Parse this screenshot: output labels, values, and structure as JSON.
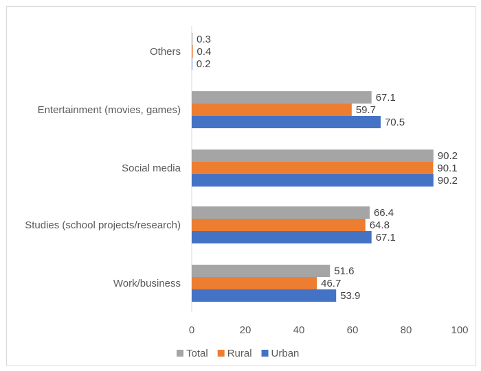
{
  "chart_data": {
    "type": "bar",
    "orientation": "horizontal",
    "categories": [
      "Work/business",
      "Studies (school projects/research)",
      "Social media",
      "Entertainment (movies, games)",
      "Others"
    ],
    "series": [
      {
        "name": "Total",
        "color": "#a5a5a5",
        "values": [
          51.6,
          66.4,
          90.2,
          67.1,
          0.3
        ]
      },
      {
        "name": "Rural",
        "color": "#ed7d31",
        "values": [
          46.7,
          64.8,
          90.1,
          59.7,
          0.4
        ]
      },
      {
        "name": "Urban",
        "color": "#4472c4",
        "values": [
          53.9,
          67.1,
          90.2,
          70.5,
          0.2
        ]
      }
    ],
    "xlim": [
      0,
      100
    ],
    "x_ticks": [
      0,
      20,
      40,
      60,
      80,
      100
    ],
    "grid": false,
    "legend_position": "bottom"
  }
}
